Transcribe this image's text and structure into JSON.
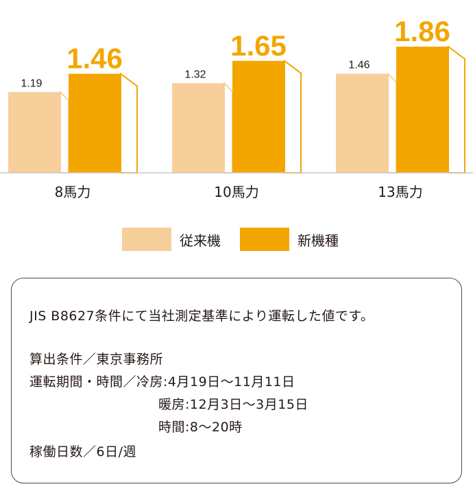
{
  "chart_data": {
    "type": "bar",
    "categories": [
      "8馬力",
      "10馬力",
      "13馬力"
    ],
    "series": [
      {
        "name": "従来機",
        "values": [
          1.19,
          1.32,
          1.46
        ],
        "color": "#f7cf9b"
      },
      {
        "name": "新機種",
        "values": [
          1.46,
          1.65,
          1.86
        ],
        "color": "#f3a600"
      }
    ],
    "ylim": [
      0,
      1.86
    ],
    "title": "",
    "xlabel": "",
    "ylabel": "",
    "grid": false,
    "legend_position": "bottom-center",
    "value_labels": true
  },
  "legend": {
    "items": [
      {
        "label": "従来機",
        "color": "#f7cf9b"
      },
      {
        "label": "新機種",
        "color": "#f3a600"
      }
    ]
  },
  "note": {
    "line1": "JIS B8627条件にて当社測定基準により運転した値です。",
    "line2": "算出条件／東京事務所",
    "line3": "運転期間・時間／冷房:4月19日〜11月11日",
    "line4": "暖房:12月3日〜3月15日",
    "line5": "時間:8〜20時",
    "line6": "稼働日数／6日/週"
  }
}
